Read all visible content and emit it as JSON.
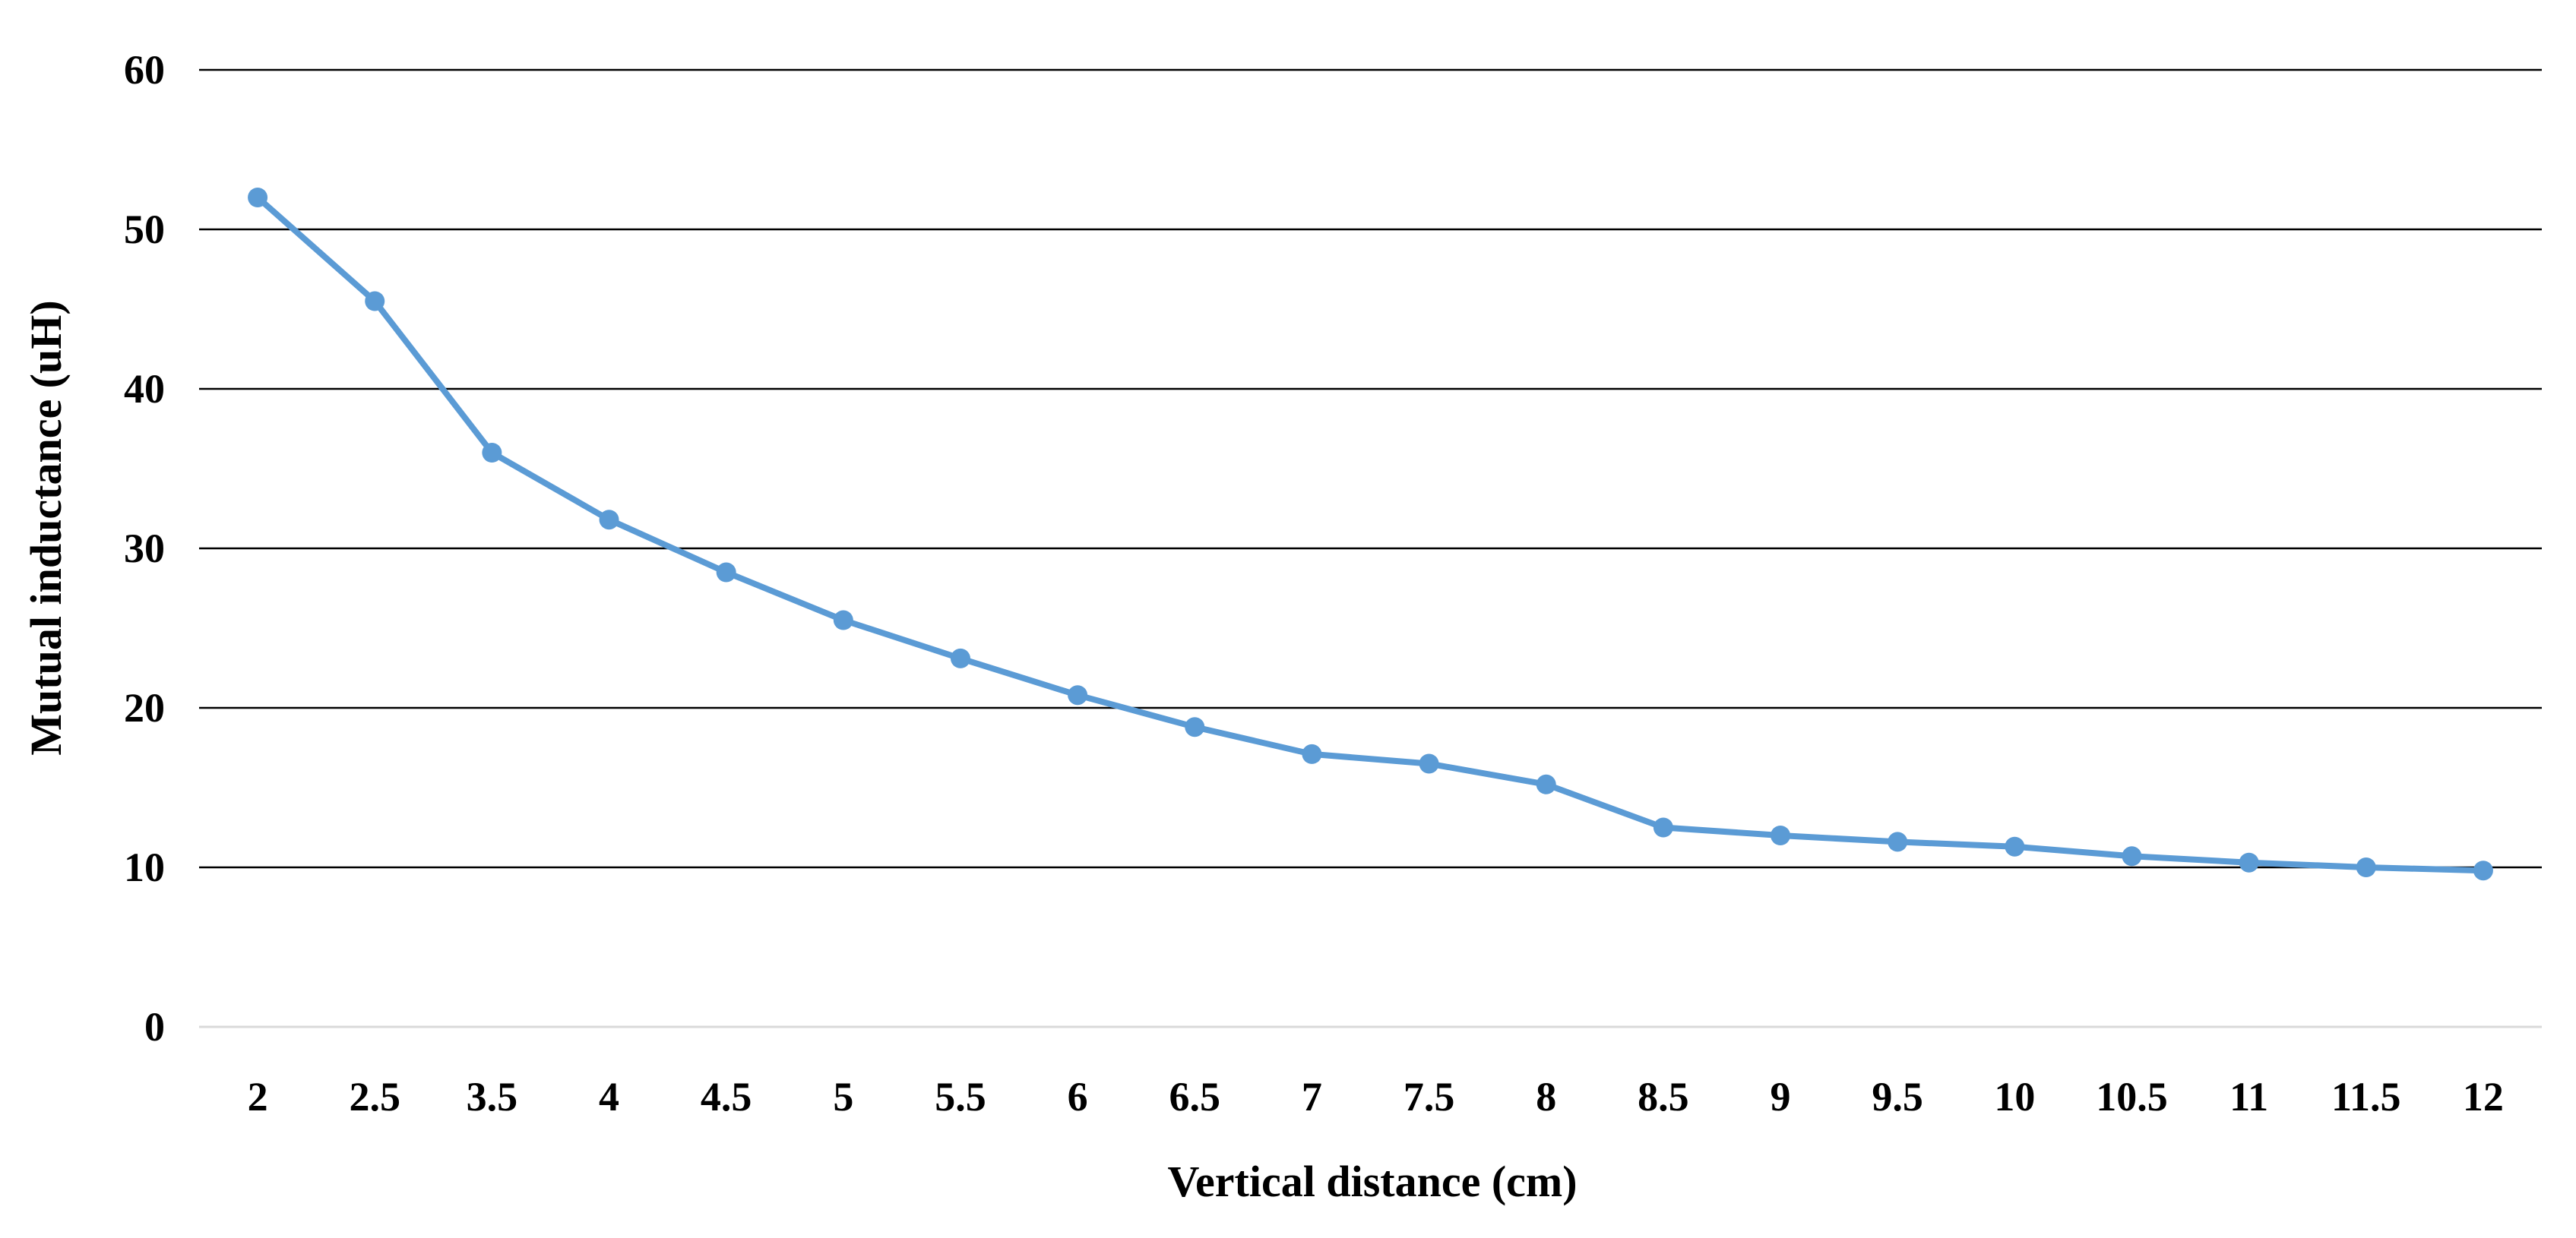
{
  "chart_data": {
    "type": "line",
    "categories": [
      "2",
      "2.5",
      "3.5",
      "4",
      "4.5",
      "5",
      "5.5",
      "6",
      "6.5",
      "7",
      "7.5",
      "8",
      "8.5",
      "9",
      "9.5",
      "10",
      "10.5",
      "11",
      "11.5",
      "12"
    ],
    "series": [
      {
        "values": [
          52,
          45.5,
          36,
          31.8,
          28.5,
          25.5,
          23.1,
          20.8,
          18.8,
          17.1,
          16.5,
          15.2,
          12.5,
          12.0,
          11.6,
          11.3,
          10.7,
          10.3,
          10.0,
          9.8
        ],
        "color": "#5b9bd5"
      }
    ],
    "xlabel": "Vertical distance (cm)",
    "ylabel": "Mutual inductance (uH)",
    "ylim": [
      0,
      60
    ],
    "yticks": [
      0,
      10,
      20,
      30,
      40,
      50,
      60
    ],
    "grid": true,
    "gridline_color": "#000000",
    "baseline_color": "#d9d9d9"
  }
}
